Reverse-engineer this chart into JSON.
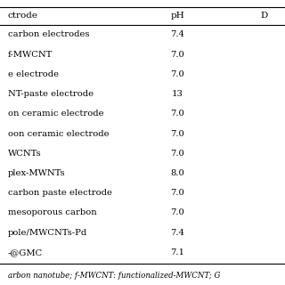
{
  "col_headers": [
    "ctrode",
    "pH",
    "D"
  ],
  "rows": [
    [
      "carbon electrodes",
      "7.4",
      ""
    ],
    [
      "f-MWCNT",
      "7.0",
      ""
    ],
    [
      "e electrode",
      "7.0",
      ""
    ],
    [
      "NT-paste electrode",
      "13",
      ""
    ],
    [
      "on ceramic electrode",
      "7.0",
      ""
    ],
    [
      "oon ceramic electrode",
      "7.0",
      ""
    ],
    [
      "WCNTs",
      "7.0",
      ""
    ],
    [
      "plex-MWNTs",
      "8.0",
      ""
    ],
    [
      "carbon paste electrode",
      "7.0",
      ""
    ],
    [
      "mesoporous carbon",
      "7.0",
      ""
    ],
    [
      "pole/MWCNTs-Pd",
      "7.4",
      ""
    ],
    [
      "-@GMC",
      "7.1",
      ""
    ]
  ],
  "footer": "arbon nanotube; f-MWCNT: functionalized-MWCNT; G",
  "bg_color": "#ffffff",
  "text_color": "#000000",
  "line_color": "#000000",
  "font_size": 7.2,
  "header_font_size": 7.5,
  "footer_font_size": 6.2
}
